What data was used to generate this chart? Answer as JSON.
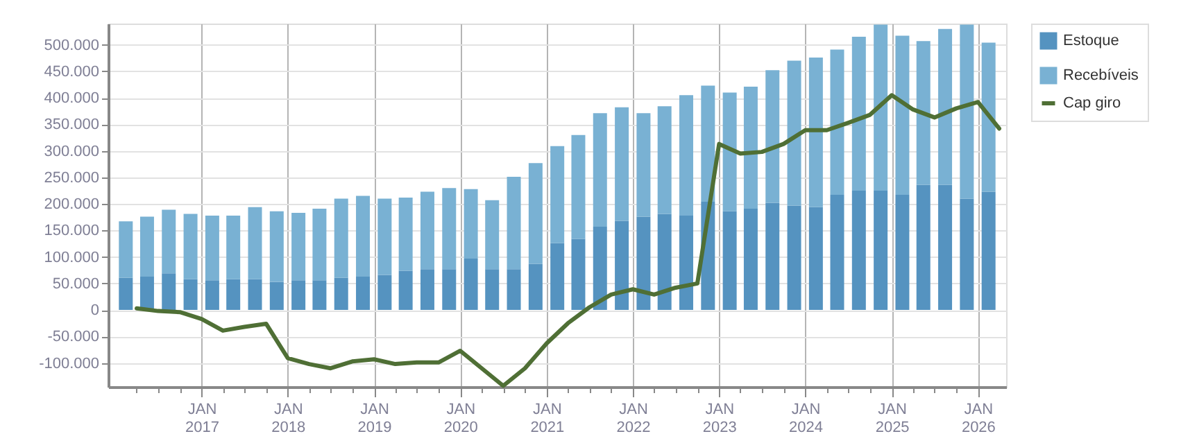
{
  "chart_data": {
    "type": "bar",
    "stacked": true,
    "grid": true,
    "legend": "top right",
    "xlim": [
      "2016-01-01",
      "2026-04-01"
    ],
    "xticks": [
      {
        "value": "2016-04",
        "label": null
      },
      {
        "value": "2016-07",
        "label": null
      },
      {
        "value": "2016-10",
        "label": null
      },
      {
        "value": "2017-01",
        "label": "JAN 2017"
      },
      {
        "value": "2017-04",
        "label": null
      },
      {
        "value": "2017-07",
        "label": null
      },
      {
        "value": "2017-10",
        "label": null
      },
      {
        "value": "2018-01",
        "label": "JAN 2018"
      },
      {
        "value": "2018-04",
        "label": null
      },
      {
        "value": "2018-07",
        "label": null
      },
      {
        "value": "2018-10",
        "label": null
      },
      {
        "value": "2019-01",
        "label": "JAN 2019"
      },
      {
        "value": "2019-04",
        "label": null
      },
      {
        "value": "2019-07",
        "label": null
      },
      {
        "value": "2019-10",
        "label": null
      },
      {
        "value": "2020-01",
        "label": "JAN 2020"
      },
      {
        "value": "2020-04",
        "label": null
      },
      {
        "value": "2020-07",
        "label": null
      },
      {
        "value": "2020-10",
        "label": null
      },
      {
        "value": "2021-01",
        "label": "JAN 2021"
      },
      {
        "value": "2021-04",
        "label": null
      },
      {
        "value": "2021-07",
        "label": null
      },
      {
        "value": "2021-10",
        "label": null
      },
      {
        "value": "2022-01",
        "label": "JAN 2022"
      },
      {
        "value": "2022-04",
        "label": null
      },
      {
        "value": "2022-07",
        "label": null
      },
      {
        "value": "2022-10",
        "label": null
      },
      {
        "value": "2023-01",
        "label": "JAN 2023"
      },
      {
        "value": "2023-04",
        "label": null
      },
      {
        "value": "2023-07",
        "label": null
      },
      {
        "value": "2023-10",
        "label": null
      },
      {
        "value": "2024-01",
        "label": "JAN 2024"
      },
      {
        "value": "2024-04",
        "label": null
      },
      {
        "value": "2024-07",
        "label": null
      },
      {
        "value": "2024-10",
        "label": null
      },
      {
        "value": "2025-01",
        "label": "JAN 2025"
      },
      {
        "value": "2025-04",
        "label": null
      },
      {
        "value": "2025-07",
        "label": null
      },
      {
        "value": "2025-10",
        "label": null
      },
      {
        "value": "2026-01",
        "label": "JAN 2026"
      }
    ],
    "ylim": [
      -145000,
      540000
    ],
    "yticks": [
      {
        "value": -100000,
        "label": "-100.000"
      },
      {
        "value": -50000,
        "label": "-50.000"
      },
      {
        "value": 0,
        "label": "0"
      },
      {
        "value": 50000,
        "label": "50.000"
      },
      {
        "value": 100000,
        "label": "100.000"
      },
      {
        "value": 150000,
        "label": "150.000"
      },
      {
        "value": 200000,
        "label": "200.000"
      },
      {
        "value": 250000,
        "label": "250.000"
      },
      {
        "value": 300000,
        "label": "300.000"
      },
      {
        "value": 350000,
        "label": "350.000"
      },
      {
        "value": 400000,
        "label": "400.000"
      },
      {
        "value": 450000,
        "label": "450.000"
      },
      {
        "value": 500000,
        "label": "500.000"
      }
    ],
    "x": [
      "2016-02-15",
      "2016-05-15",
      "2016-08-15",
      "2016-11-15",
      "2017-02-15",
      "2017-05-15",
      "2017-08-15",
      "2017-11-15",
      "2018-02-15",
      "2018-05-15",
      "2018-08-15",
      "2018-11-15",
      "2019-02-15",
      "2019-05-15",
      "2019-08-15",
      "2019-11-15",
      "2020-02-15",
      "2020-05-15",
      "2020-08-15",
      "2020-11-15",
      "2021-02-15",
      "2021-05-15",
      "2021-08-15",
      "2021-11-15",
      "2022-02-15",
      "2022-05-15",
      "2022-08-15",
      "2022-11-15",
      "2023-02-15",
      "2023-05-15",
      "2023-08-15",
      "2023-11-15",
      "2024-02-15",
      "2024-05-15",
      "2024-08-15",
      "2024-11-15",
      "2025-02-15",
      "2025-05-15",
      "2025-08-15",
      "2025-11-15",
      "2026-02-15"
    ],
    "series": [
      {
        "name": "Estoque",
        "type": "bar",
        "color": "#5593c0",
        "values": [
          61000,
          63000,
          69000,
          58000,
          56000,
          58000,
          58000,
          53000,
          56000,
          56000,
          61000,
          63000,
          66000,
          74000,
          77000,
          77000,
          97000,
          77000,
          77000,
          87000,
          126000,
          134000,
          157000,
          168000,
          176000,
          181000,
          178000,
          204000,
          186000,
          191000,
          202000,
          197000,
          194000,
          217000,
          225000,
          225000,
          217000,
          236000,
          236000,
          210000,
          223000
        ]
      },
      {
        "name": "Recebíveis",
        "type": "bar",
        "color": "#79b1d3",
        "values": [
          106000,
          113000,
          120000,
          123000,
          122000,
          120000,
          136000,
          133000,
          127000,
          135000,
          149000,
          152000,
          144000,
          138000,
          146000,
          153000,
          131000,
          130000,
          174000,
          190000,
          183000,
          196000,
          214000,
          214000,
          195000,
          203000,
          227000,
          219000,
          224000,
          230000,
          250000,
          273000,
          282000,
          274000,
          290000,
          313000,
          300000,
          271000,
          294000,
          328000,
          281000
        ]
      },
      {
        "name": "Cap giro",
        "type": "line",
        "color": "#4f6f35",
        "x": [
          "2016-04-01",
          "2016-07-01",
          "2016-10-01",
          "2017-01-01",
          "2017-04-01",
          "2017-07-01",
          "2017-10-01",
          "2018-01-01",
          "2018-04-01",
          "2018-07-01",
          "2018-10-01",
          "2019-01-01",
          "2019-04-01",
          "2019-07-01",
          "2019-10-01",
          "2020-01-01",
          "2020-04-01",
          "2020-07-01",
          "2020-10-01",
          "2021-01-01",
          "2021-04-01",
          "2021-07-01",
          "2021-10-01",
          "2022-01-01",
          "2022-04-01",
          "2022-07-01",
          "2022-10-01",
          "2023-01-01",
          "2023-04-01",
          "2023-07-01",
          "2023-10-01",
          "2024-01-01",
          "2024-04-01",
          "2024-07-01",
          "2024-10-01",
          "2025-01-01",
          "2025-04-01",
          "2025-07-01",
          "2025-10-01",
          "2026-01-01",
          "2026-04-01"
        ],
        "values": [
          3000,
          -2000,
          -4000,
          -17000,
          -39000,
          -32000,
          -26000,
          -91000,
          -102000,
          -110000,
          -97000,
          -93000,
          -102000,
          -99000,
          -99000,
          -77000,
          -110000,
          -143000,
          -110000,
          -63000,
          -25000,
          5000,
          29000,
          39000,
          29000,
          42000,
          50000,
          313000,
          295000,
          298000,
          313000,
          339000,
          339000,
          353000,
          368000,
          405000,
          378000,
          363000,
          380000,
          392000,
          342000
        ]
      }
    ]
  }
}
